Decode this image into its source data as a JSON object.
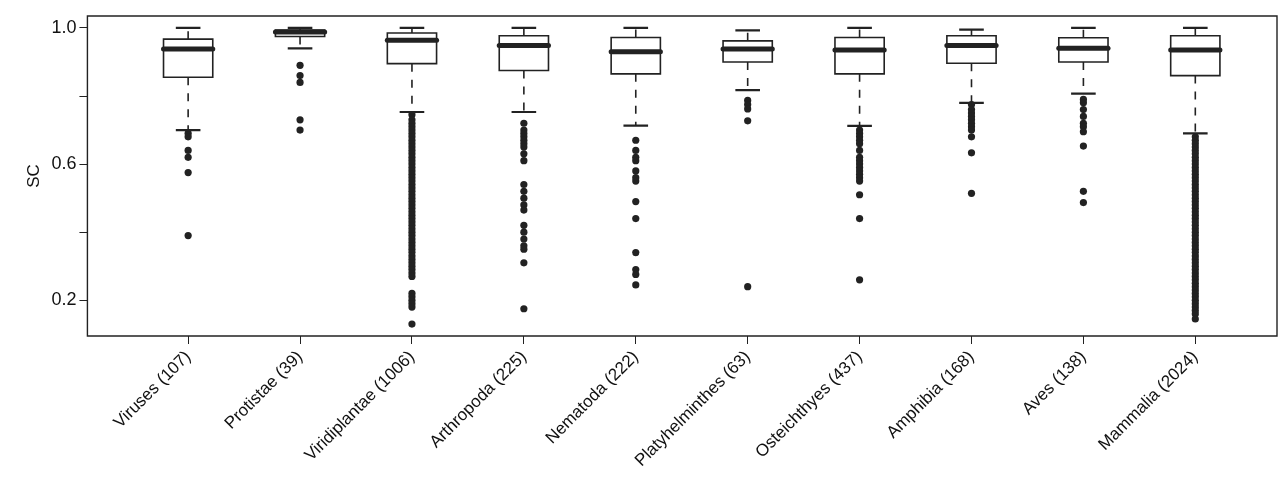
{
  "chart_data": {
    "type": "box",
    "ylabel": "SC",
    "categories": [
      "Viruses (107)",
      "Protistae (39)",
      "Viridiplantae (1006)",
      "Arthropoda (225)",
      "Nematoda (222)",
      "Platyhelminthes (63)",
      "Osteichthyes (437)",
      "Amphibia (168)",
      "Aves (138)",
      "Mammalia (2024)"
    ],
    "ylim": [
      0.095,
      1.035
    ],
    "yticks": [
      {
        "value": 0.2,
        "label": "0.2"
      },
      {
        "value": 0.4,
        "label": null
      },
      {
        "value": 0.6,
        "label": "0.6"
      },
      {
        "value": 0.8,
        "label": null
      },
      {
        "value": 1.0,
        "label": "1.0"
      }
    ],
    "marker": "circle",
    "boxes": [
      {
        "low": 0.7,
        "q1": 0.855,
        "median": 0.938,
        "q3": 0.967,
        "high": 1.0,
        "outliers": [
          0.69,
          0.68,
          0.64,
          0.62,
          0.575,
          0.39
        ]
      },
      {
        "low": 0.94,
        "q1": 0.975,
        "median": 0.988,
        "q3": 0.994,
        "high": 1.0,
        "outliers": [
          0.89,
          0.86,
          0.84,
          0.73,
          0.7
        ]
      },
      {
        "low": 0.753,
        "q1": 0.895,
        "median": 0.964,
        "q3": 0.985,
        "high": 1.0,
        "outliers": [
          0.745,
          0.73,
          0.72,
          0.71,
          0.7,
          0.69,
          0.68,
          0.67,
          0.66,
          0.65,
          0.64,
          0.63,
          0.62,
          0.61,
          0.6,
          0.59,
          0.58,
          0.57,
          0.56,
          0.55,
          0.54,
          0.53,
          0.52,
          0.51,
          0.5,
          0.49,
          0.48,
          0.47,
          0.46,
          0.45,
          0.44,
          0.43,
          0.42,
          0.41,
          0.4,
          0.39,
          0.38,
          0.37,
          0.36,
          0.35,
          0.34,
          0.33,
          0.32,
          0.31,
          0.3,
          0.29,
          0.28,
          0.27,
          0.22,
          0.21,
          0.2,
          0.19,
          0.18,
          0.13
        ]
      },
      {
        "low": 0.753,
        "q1": 0.875,
        "median": 0.948,
        "q3": 0.977,
        "high": 1.0,
        "outliers": [
          0.72,
          0.7,
          0.69,
          0.68,
          0.67,
          0.66,
          0.65,
          0.63,
          0.61,
          0.54,
          0.52,
          0.5,
          0.48,
          0.465,
          0.42,
          0.4,
          0.38,
          0.36,
          0.35,
          0.31,
          0.175
        ]
      },
      {
        "low": 0.713,
        "q1": 0.865,
        "median": 0.93,
        "q3": 0.972,
        "high": 1.0,
        "outliers": [
          0.67,
          0.64,
          0.62,
          0.61,
          0.58,
          0.56,
          0.55,
          0.49,
          0.44,
          0.34,
          0.29,
          0.276,
          0.245
        ]
      },
      {
        "low": 0.817,
        "q1": 0.9,
        "median": 0.938,
        "q3": 0.962,
        "high": 0.993,
        "outliers": [
          0.787,
          0.775,
          0.762,
          0.727,
          0.24
        ]
      },
      {
        "low": 0.712,
        "q1": 0.865,
        "median": 0.935,
        "q3": 0.972,
        "high": 1.0,
        "outliers": [
          0.7,
          0.69,
          0.68,
          0.67,
          0.66,
          0.64,
          0.62,
          0.61,
          0.6,
          0.59,
          0.58,
          0.57,
          0.56,
          0.55,
          0.51,
          0.44,
          0.26
        ]
      },
      {
        "low": 0.78,
        "q1": 0.896,
        "median": 0.948,
        "q3": 0.977,
        "high": 0.995,
        "outliers": [
          0.775,
          0.76,
          0.75,
          0.74,
          0.73,
          0.72,
          0.71,
          0.7,
          0.68,
          0.633,
          0.514
        ]
      },
      {
        "low": 0.807,
        "q1": 0.9,
        "median": 0.94,
        "q3": 0.971,
        "high": 1.0,
        "outliers": [
          0.79,
          0.78,
          0.76,
          0.74,
          0.72,
          0.71,
          0.695,
          0.653,
          0.52,
          0.487
        ]
      },
      {
        "low": 0.69,
        "q1": 0.86,
        "median": 0.935,
        "q3": 0.977,
        "high": 1.0,
        "outliers": [
          0.68,
          0.67,
          0.66,
          0.65,
          0.64,
          0.63,
          0.62,
          0.61,
          0.6,
          0.59,
          0.58,
          0.57,
          0.56,
          0.55,
          0.54,
          0.53,
          0.52,
          0.51,
          0.5,
          0.49,
          0.48,
          0.47,
          0.46,
          0.45,
          0.44,
          0.43,
          0.42,
          0.41,
          0.4,
          0.39,
          0.38,
          0.37,
          0.36,
          0.35,
          0.34,
          0.33,
          0.32,
          0.31,
          0.3,
          0.29,
          0.28,
          0.27,
          0.26,
          0.25,
          0.24,
          0.23,
          0.22,
          0.21,
          0.2,
          0.19,
          0.18,
          0.17,
          0.16,
          0.145
        ]
      }
    ]
  }
}
